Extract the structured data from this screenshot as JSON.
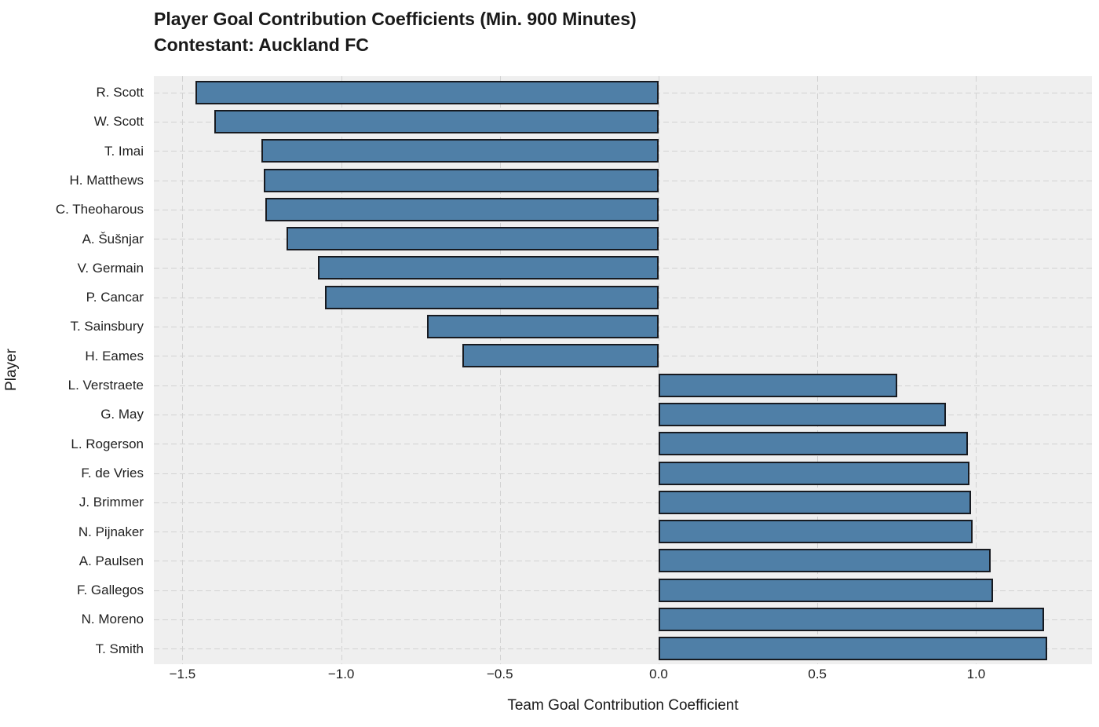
{
  "chart_data": {
    "type": "bar",
    "orientation": "horizontal",
    "title": "Player Goal Contribution Coefficients (Min. 900 Minutes)",
    "subtitle": "Contestant: Auckland FC",
    "xlabel": "Team Goal Contribution Coefficient",
    "ylabel": "Player",
    "grid": true,
    "legend": "none",
    "xlim": [
      -1.59,
      1.365
    ],
    "xticks": [
      -1.5,
      -1.0,
      -0.5,
      0.0,
      0.5,
      1.0
    ],
    "xtick_labels": [
      "−1.5",
      "−1.0",
      "−0.5",
      "0.0",
      "0.5",
      "1.0"
    ],
    "categories": [
      "R. Scott",
      "W. Scott",
      "T. Imai",
      "H. Matthews",
      "C. Theoharous",
      "A. Šušnjar",
      "V. Germain",
      "P. Cancar",
      "T. Sainsbury",
      "H. Eames",
      "L. Verstraete",
      "G. May",
      "L. Rogerson",
      "F. de Vries",
      "J. Brimmer",
      "N. Pijnaker",
      "A. Paulsen",
      "F. Gallegos",
      "N. Moreno",
      "T. Smith"
    ],
    "values": [
      -1.46,
      -1.4,
      -1.25,
      -1.244,
      -1.238,
      -1.173,
      -1.073,
      -1.052,
      -0.73,
      -0.617,
      0.751,
      0.906,
      0.975,
      0.98,
      0.983,
      0.988,
      1.045,
      1.053,
      1.214,
      1.224
    ],
    "colors": {
      "bar_fill": "#4f7fa7",
      "bar_edge": "#171a20",
      "plot_bg": "#efefef",
      "gridline": "#d2d2d2",
      "figure_bg": "#ffffff",
      "text": "#1a1a1a"
    }
  }
}
